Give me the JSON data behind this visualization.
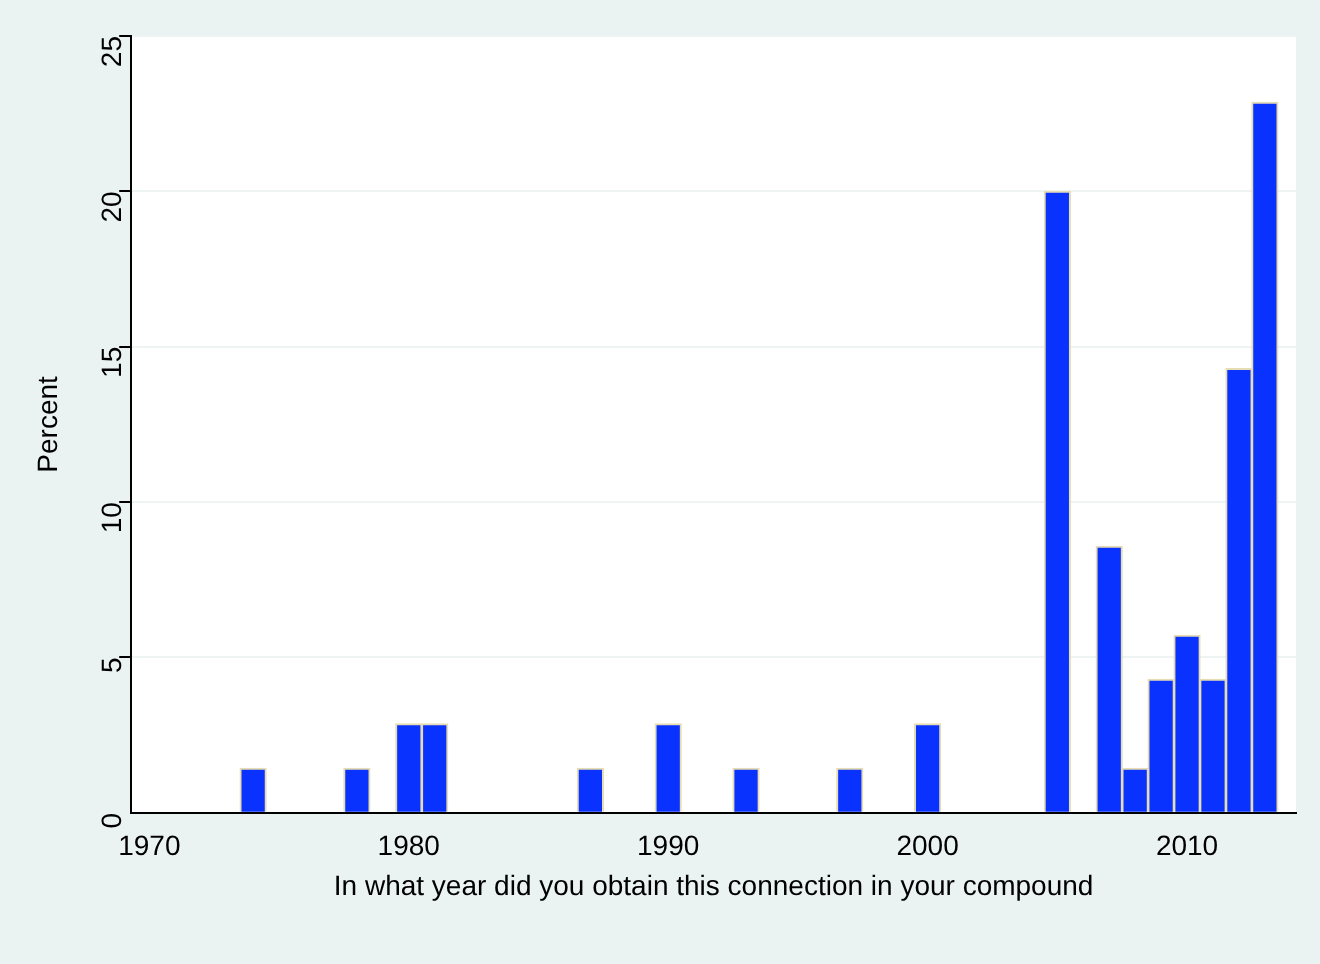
{
  "chart_data": {
    "type": "bar",
    "xlabel": "In what year did you obtain this connection in your compound",
    "ylabel": "Percent",
    "x": [
      1974,
      1978,
      1980,
      1981,
      1987,
      1990,
      1993,
      1997,
      2000,
      2005,
      2007,
      2008,
      2009,
      2010,
      2011,
      2012,
      2013
    ],
    "values": [
      1.43,
      1.43,
      2.86,
      2.86,
      1.43,
      2.86,
      1.43,
      1.43,
      2.86,
      20,
      8.57,
      1.43,
      4.29,
      5.71,
      4.29,
      14.29,
      22.86
    ],
    "color": "#0a32ff",
    "xlim": [
      1969.3,
      2014.2
    ],
    "xticks": [
      1970,
      1980,
      1990,
      2000,
      2010
    ],
    "ylim": [
      0,
      25
    ],
    "yticks": [
      0,
      5,
      10,
      15,
      20,
      25
    ],
    "grid": "y"
  }
}
